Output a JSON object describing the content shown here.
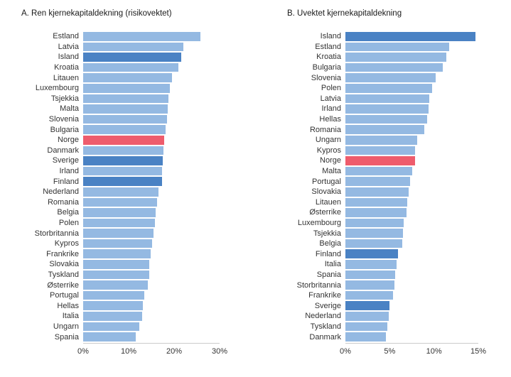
{
  "colors": {
    "default_bar": "#94b9e2",
    "highlight_bar": "#4a82c4",
    "norway_bar": "#ee5c6c",
    "axis_line": "#cbcbcb",
    "text": "#333333"
  },
  "chart_data": [
    {
      "type": "bar",
      "orientation": "horizontal",
      "title": "A. Ren kjernekapitaldekning (risikovektet)",
      "xlabel": "",
      "ylabel": "",
      "xlim": [
        0,
        30
      ],
      "xticks": [
        0,
        10,
        20,
        30
      ],
      "xtick_labels": [
        "0%",
        "10%",
        "20%",
        "30%"
      ],
      "grid": false,
      "legend": "none",
      "categories": [
        "Estland",
        "Latvia",
        "Island",
        "Kroatia",
        "Litauen",
        "Luxembourg",
        "Tsjekkia",
        "Malta",
        "Slovenia",
        "Bulgaria",
        "Norge",
        "Danmark",
        "Sverige",
        "Irland",
        "Finland",
        "Nederland",
        "Romania",
        "Belgia",
        "Polen",
        "Storbritannia",
        "Kypros",
        "Frankrike",
        "Slovakia",
        "Tyskland",
        "Østerrike",
        "Portugal",
        "Hellas",
        "Italia",
        "Ungarn",
        "Spania"
      ],
      "values": [
        25.8,
        22.0,
        21.5,
        20.9,
        19.6,
        19.0,
        18.8,
        18.6,
        18.5,
        18.2,
        17.8,
        17.6,
        17.5,
        17.4,
        17.3,
        16.5,
        16.3,
        16.0,
        15.8,
        15.4,
        15.2,
        14.8,
        14.6,
        14.5,
        14.2,
        13.5,
        13.1,
        12.9,
        12.3,
        11.5
      ],
      "color_keys": [
        "default",
        "default",
        "highlight",
        "default",
        "default",
        "default",
        "default",
        "default",
        "default",
        "default",
        "norway",
        "default",
        "highlight",
        "default",
        "highlight",
        "default",
        "default",
        "default",
        "default",
        "default",
        "default",
        "default",
        "default",
        "default",
        "default",
        "default",
        "default",
        "default",
        "default",
        "default"
      ]
    },
    {
      "type": "bar",
      "orientation": "horizontal",
      "title": "B. Uvektet kjernekapitaldekning",
      "xlabel": "",
      "ylabel": "",
      "xlim": [
        0,
        15
      ],
      "xticks": [
        0,
        5,
        10,
        15
      ],
      "xtick_labels": [
        "0%",
        "5%",
        "10%",
        "15%"
      ],
      "grid": false,
      "legend": "none",
      "categories": [
        "Island",
        "Estland",
        "Kroatia",
        "Bulgaria",
        "Slovenia",
        "Polen",
        "Latvia",
        "Irland",
        "Hellas",
        "Romania",
        "Ungarn",
        "Kypros",
        "Norge",
        "Malta",
        "Portugal",
        "Slovakia",
        "Litauen",
        "Østerrike",
        "Luxembourg",
        "Tsjekkia",
        "Belgia",
        "Finland",
        "Italia",
        "Spania",
        "Storbritannia",
        "Frankrike",
        "Sverige",
        "Nederland",
        "Tyskland",
        "Danmark"
      ],
      "values": [
        14.7,
        11.7,
        11.4,
        11.0,
        10.2,
        9.8,
        9.5,
        9.4,
        9.2,
        8.9,
        8.1,
        7.9,
        7.9,
        7.5,
        7.3,
        7.1,
        7.0,
        6.9,
        6.6,
        6.5,
        6.4,
        5.9,
        5.8,
        5.6,
        5.5,
        5.4,
        5.0,
        4.9,
        4.7,
        4.6
      ],
      "color_keys": [
        "highlight",
        "default",
        "default",
        "default",
        "default",
        "default",
        "default",
        "default",
        "default",
        "default",
        "default",
        "default",
        "norway",
        "default",
        "default",
        "default",
        "default",
        "default",
        "default",
        "default",
        "default",
        "highlight",
        "default",
        "default",
        "default",
        "default",
        "highlight",
        "default",
        "default",
        "default"
      ]
    }
  ]
}
